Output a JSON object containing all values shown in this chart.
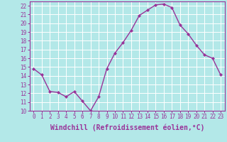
{
  "x": [
    0,
    1,
    2,
    3,
    4,
    5,
    6,
    7,
    8,
    9,
    10,
    11,
    12,
    13,
    14,
    15,
    16,
    17,
    18,
    19,
    20,
    21,
    22,
    23
  ],
  "y": [
    14.8,
    14.1,
    12.2,
    12.1,
    11.6,
    12.2,
    11.1,
    10.0,
    11.6,
    14.8,
    16.6,
    17.8,
    19.2,
    20.9,
    21.5,
    22.1,
    22.2,
    21.8,
    19.8,
    18.8,
    17.5,
    16.4,
    16.0,
    14.1
  ],
  "line_color": "#993399",
  "marker": "D",
  "marker_size": 2,
  "xlabel": "Windchill (Refroidissement éolien,°C)",
  "xlabel_fontsize": 7,
  "xtick_fontsize": 5.5,
  "ytick_fontsize": 5.5,
  "xlim": [
    -0.5,
    23.5
  ],
  "ylim": [
    10,
    22.5
  ],
  "yticks": [
    10,
    11,
    12,
    13,
    14,
    15,
    16,
    17,
    18,
    19,
    20,
    21,
    22
  ],
  "xticks": [
    0,
    1,
    2,
    3,
    4,
    5,
    6,
    7,
    8,
    9,
    10,
    11,
    12,
    13,
    14,
    15,
    16,
    17,
    18,
    19,
    20,
    21,
    22,
    23
  ],
  "bg_color": "#b3e8e8",
  "grid_color": "#ffffff",
  "line_width": 1.0,
  "spine_color": "#993399",
  "tick_color": "#993399"
}
